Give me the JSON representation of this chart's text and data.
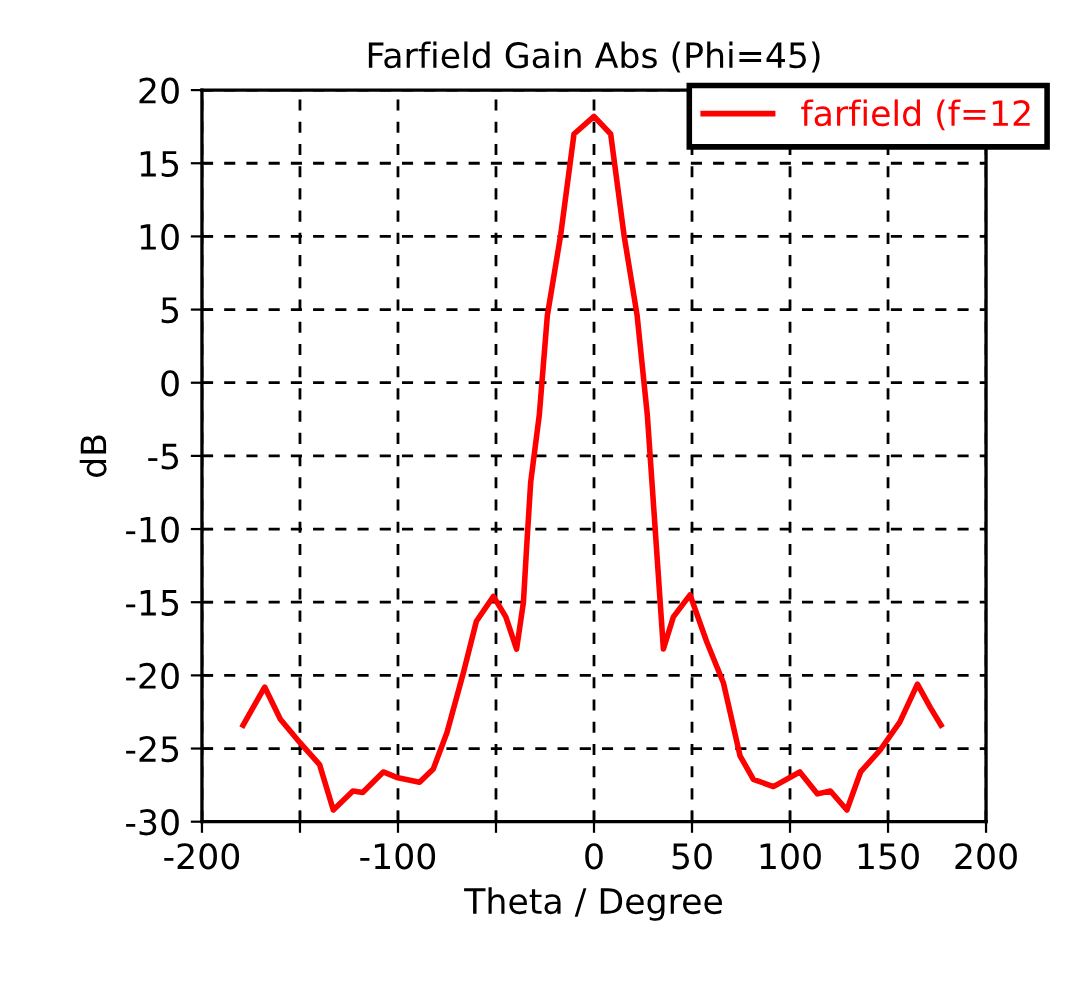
{
  "chart_data": {
    "type": "line",
    "title": "Farfield Gain Abs (Phi=45)",
    "xlabel": "Theta / Degree",
    "ylabel": "dB",
    "series": [
      {
        "name": "farfield (f=12",
        "color": "#ff0000",
        "x": [
          -179,
          -168,
          -160,
          -150,
          -140,
          -133,
          -123,
          -118,
          -107.5,
          -100,
          -89,
          -82,
          -75,
          -66.6,
          -60,
          -51.3,
          -45,
          -39.5,
          -36,
          -34.4,
          -32.3,
          -27.9,
          -23.8,
          -17,
          -10.2,
          0,
          8.5,
          15.3,
          22,
          27.2,
          30.6,
          35.4,
          40.5,
          49,
          57.5,
          66,
          74.5,
          81.3,
          91.5,
          105,
          114,
          120.6,
          129,
          136,
          146,
          156,
          165,
          171.6,
          177
        ],
        "values": [
          -23.4,
          -20.8,
          -23,
          -24.6,
          -26.1,
          -29.2,
          -27.9,
          -28,
          -26.6,
          -27,
          -27.3,
          -26.4,
          -23.9,
          -19.8,
          -16.3,
          -14.6,
          -16,
          -18.2,
          -15,
          -11.3,
          -6.8,
          -2.2,
          4.6,
          10.1,
          17,
          18.2,
          17,
          10.1,
          4.6,
          -2.2,
          -8.8,
          -18.2,
          -16,
          -14.5,
          -17.7,
          -20.5,
          -25.5,
          -27.1,
          -27.6,
          -26.6,
          -28.1,
          -27.9,
          -29.2,
          -26.6,
          -25.1,
          -23.2,
          -20.6,
          -22.2,
          -23.4
        ]
      }
    ],
    "xlim": [
      -200,
      200
    ],
    "xticks": [
      -200,
      {
        "value": -150,
        "label": null
      },
      -100,
      {
        "value": -50,
        "label": null
      },
      0,
      50,
      100,
      150,
      200
    ],
    "ylim": [
      -30,
      20
    ],
    "yticks": [
      -30,
      -25,
      -20,
      -15,
      -10,
      -5,
      0,
      5,
      10,
      15,
      20
    ],
    "grid": true,
    "legend": "top right",
    "line_style": "solid",
    "marker": "none"
  }
}
